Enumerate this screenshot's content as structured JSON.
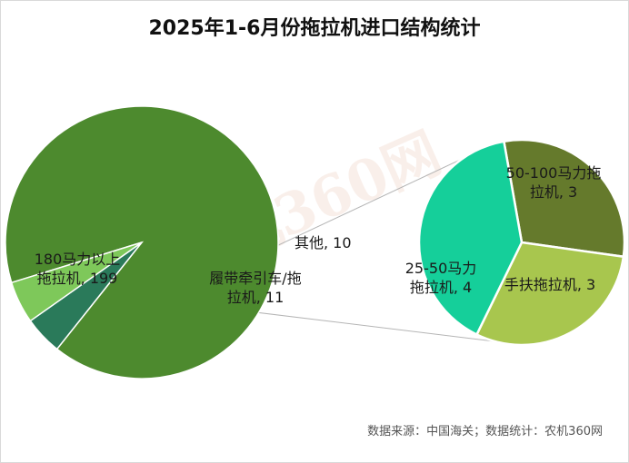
{
  "chart_data": {
    "type": "pie",
    "title": "2025年1-6月份拖拉机进口结构统计",
    "main_pie": {
      "slices": [
        {
          "label_lines": [
            "180马力以上",
            "拖拉机, 199"
          ],
          "category": "180马力以上拖拉机",
          "value": 199,
          "color": "#4d8a2e"
        },
        {
          "label_lines": [
            "其他, 10"
          ],
          "category": "其他",
          "value": 10,
          "color": "#2a7a5a"
        },
        {
          "label_lines": [
            "履带牵引车/拖",
            "拉机, 11"
          ],
          "category": "履带牵引车/拖拉机",
          "value": 11,
          "color": "#7ec85a"
        }
      ]
    },
    "secondary_pie": {
      "slices": [
        {
          "label_lines": [
            "50-100马力拖",
            "拉机, 3"
          ],
          "category": "50-100马力拖拉机",
          "value": 3,
          "color": "#657a2c"
        },
        {
          "label_lines": [
            "手扶拖拉机, 3"
          ],
          "category": "手扶拖拉机",
          "value": 3,
          "color": "#a8c64e"
        },
        {
          "label_lines": [
            "25-50马力",
            "拖拉机, 4"
          ],
          "category": "25-50马力拖拉机",
          "value": 4,
          "color": "#15cf9a"
        }
      ]
    }
  },
  "watermark": "农机360网",
  "source_text": "数据来源：中国海关；数据统计：农机360网"
}
